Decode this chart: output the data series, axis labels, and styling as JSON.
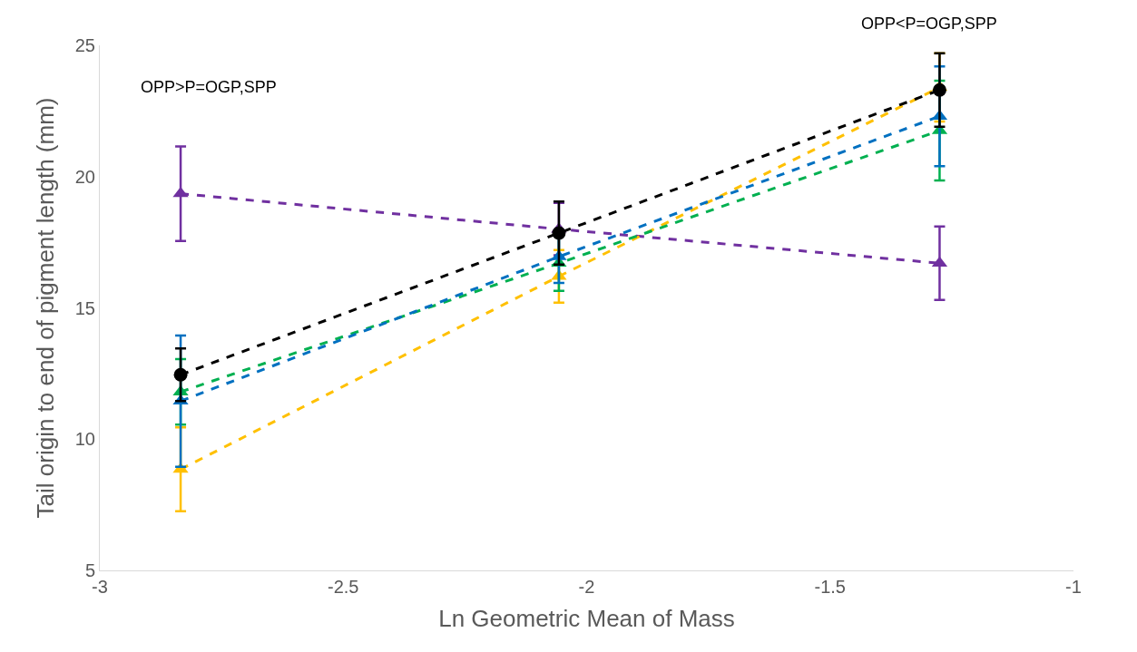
{
  "chart_data": {
    "type": "line",
    "xlabel": "Ln Geometric Mean of Mass",
    "ylabel": "Tail origin to end of pigment length (mm)",
    "x": [
      -2.834,
      -2.057,
      -1.275
    ],
    "series": [
      {
        "color": "#7030a0",
        "marker": "triangle",
        "values": [
          19.35,
          18.0,
          16.7
        ],
        "errors": [
          1.8,
          1.0,
          1.4
        ]
      },
      {
        "color": "#ffc000",
        "marker": "triangle",
        "values": [
          8.85,
          16.2,
          23.4
        ],
        "errors": [
          1.6,
          1.0,
          1.3
        ]
      },
      {
        "color": "#00b050",
        "marker": "triangle",
        "values": [
          11.8,
          16.7,
          21.75
        ],
        "errors": [
          1.25,
          1.05,
          1.9
        ]
      },
      {
        "color": "#0070c0",
        "marker": "triangle",
        "values": [
          11.45,
          16.95,
          22.3
        ],
        "errors": [
          2.5,
          1.0,
          1.9
        ]
      },
      {
        "color": "#000000",
        "marker": "circle",
        "values": [
          12.45,
          17.85,
          23.3
        ],
        "errors": [
          1.0,
          1.2,
          1.4
        ]
      }
    ],
    "xlim": [
      -3,
      -1
    ],
    "xticks": [
      -3,
      -2.5,
      -2,
      -1.5,
      -1
    ],
    "ylim": [
      5,
      25
    ],
    "yticks": [
      5,
      10,
      15,
      20,
      25
    ],
    "line_style": "dashed",
    "annotations": [
      "OPP>P=OGP,SPP",
      "OPP<P=OGP,SPP"
    ]
  }
}
